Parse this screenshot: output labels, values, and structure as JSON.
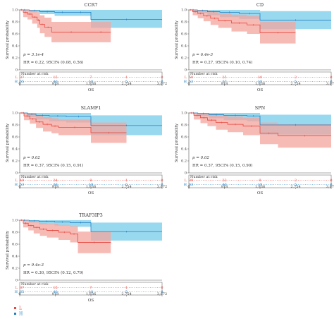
{
  "colors": {
    "low": "#e8473f",
    "high": "#1f7fc0",
    "low_band": "#f4a49e",
    "high_band": "#7fd0ec",
    "frame": "#555555"
  },
  "legend": {
    "low_label": "L",
    "high_label": "H"
  },
  "chart_data": [
    {
      "type": "line",
      "title": "CCR7",
      "xlabel": "OS",
      "ylabel": "Survival probability",
      "xlim": [
        0,
        3672
      ],
      "ylim": [
        0,
        1.0
      ],
      "x_ticks": [
        "0",
        "918",
        "1,836",
        "2,754",
        "3,672"
      ],
      "y_ticks": [
        "0",
        "0.2",
        "0.4",
        "0.6",
        "0.8",
        "1.0"
      ],
      "grid": false,
      "pvalue_text": "p = 3.1e-4",
      "hr_text": "HR = 0.22, 95CI% (0.08, 0.56)",
      "risk_table_label": "Number at risk",
      "series": [
        {
          "name": "L",
          "risk_counts": [
            "37",
            "15",
            "7",
            "1",
            "0"
          ],
          "x": [
            0,
            90,
            200,
            320,
            450,
            520,
            640,
            820,
            1836,
            2350
          ],
          "y": [
            1.0,
            0.96,
            0.93,
            0.88,
            0.83,
            0.76,
            0.71,
            0.63,
            0.63,
            0.63
          ],
          "ci_lower": [
            1.0,
            0.88,
            0.84,
            0.77,
            0.7,
            0.61,
            0.55,
            0.46,
            0.46,
            0.46
          ],
          "ci_upper": [
            1.0,
            1.0,
            1.0,
            0.99,
            0.96,
            0.91,
            0.87,
            0.8,
            0.8,
            0.8
          ]
        },
        {
          "name": "H",
          "risk_counts": [
            "65",
            "40",
            "18",
            "5",
            "0"
          ],
          "x": [
            0,
            250,
            520,
            900,
            1300,
            1836,
            3672
          ],
          "y": [
            1.0,
            0.99,
            0.97,
            0.96,
            0.96,
            0.84,
            0.84
          ],
          "ci_lower": [
            1.0,
            0.96,
            0.93,
            0.9,
            0.9,
            0.7,
            0.7
          ],
          "ci_upper": [
            1.0,
            1.0,
            1.0,
            1.0,
            1.0,
            1.0,
            1.0
          ]
        }
      ]
    },
    {
      "type": "line",
      "title": "CD",
      "xlabel": "OS",
      "ylabel": "Survival probability",
      "xlim": [
        0,
        3672
      ],
      "ylim": [
        0,
        1.0
      ],
      "x_ticks": [
        "0",
        "918",
        "1,836",
        "2,754",
        "3,672"
      ],
      "y_ticks": [
        "0",
        "0.2",
        "0.4",
        "0.6",
        "0.8",
        "1.0"
      ],
      "grid": false,
      "pvalue_text": "p = 6.4e-3",
      "hr_text": "HR = 0.27, 95CI% (0.10, 0.74)",
      "risk_table_label": "Number at risk",
      "series": [
        {
          "name": "L",
          "risk_counts": [
            "50",
            "25",
            "10",
            "2",
            "0"
          ],
          "x": [
            0,
            100,
            230,
            380,
            560,
            760,
            1100,
            1500,
            1836,
            2754
          ],
          "y": [
            1.0,
            0.97,
            0.94,
            0.9,
            0.86,
            0.82,
            0.78,
            0.75,
            0.62,
            0.62
          ],
          "ci_lower": [
            1.0,
            0.91,
            0.86,
            0.81,
            0.75,
            0.7,
            0.64,
            0.6,
            0.44,
            0.44
          ],
          "ci_upper": [
            1.0,
            1.0,
            1.0,
            0.99,
            0.97,
            0.94,
            0.92,
            0.9,
            0.8,
            0.8
          ]
        },
        {
          "name": "H",
          "risk_counts": [
            "52",
            "37",
            "18",
            "5",
            "0"
          ],
          "x": [
            0,
            220,
            480,
            800,
            1300,
            1836,
            3672
          ],
          "y": [
            1.0,
            0.99,
            0.97,
            0.96,
            0.94,
            0.83,
            0.83
          ],
          "ci_lower": [
            1.0,
            0.95,
            0.91,
            0.88,
            0.85,
            0.68,
            0.68
          ],
          "ci_upper": [
            1.0,
            1.0,
            1.0,
            1.0,
            1.0,
            0.98,
            0.98
          ]
        }
      ]
    },
    {
      "type": "line",
      "title": "SLAMF1",
      "xlabel": "OS",
      "ylabel": "Survival probability",
      "xlim": [
        0,
        3672
      ],
      "ylim": [
        0,
        1.0
      ],
      "x_ticks": [
        "0",
        "918",
        "1,836",
        "2,754",
        "3,672"
      ],
      "y_ticks": [
        "0",
        "0.2",
        "0.4",
        "0.6",
        "0.8",
        "1.0"
      ],
      "grid": false,
      "pvalue_text": "p = 0.02",
      "hr_text": "HR = 0.37, 95CI% (0.15, 0.91)",
      "risk_table_label": "Number at risk",
      "series": [
        {
          "name": "L",
          "risk_counts": [
            "49",
            "24",
            "9",
            "1",
            "0"
          ],
          "x": [
            0,
            110,
            260,
            420,
            600,
            820,
            1000,
            1836,
            2754
          ],
          "y": [
            1.0,
            0.95,
            0.9,
            0.85,
            0.81,
            0.78,
            0.76,
            0.67,
            0.67
          ],
          "ci_lower": [
            1.0,
            0.88,
            0.82,
            0.75,
            0.69,
            0.66,
            0.63,
            0.5,
            0.5
          ],
          "ci_upper": [
            1.0,
            1.0,
            0.99,
            0.96,
            0.93,
            0.91,
            0.89,
            0.84,
            0.84
          ]
        },
        {
          "name": "H",
          "risk_counts": [
            "53",
            "38",
            "19",
            "6",
            "0"
          ],
          "x": [
            0,
            200,
            420,
            760,
            1200,
            1836,
            3672
          ],
          "y": [
            1.0,
            0.98,
            0.96,
            0.95,
            0.94,
            0.79,
            0.79
          ],
          "ci_lower": [
            1.0,
            0.93,
            0.89,
            0.86,
            0.84,
            0.63,
            0.63
          ],
          "ci_upper": [
            1.0,
            1.0,
            1.0,
            1.0,
            1.0,
            0.96,
            0.96
          ]
        }
      ]
    },
    {
      "type": "line",
      "title": "SPN",
      "xlabel": "OS",
      "ylabel": "Survival probability",
      "xlim": [
        0,
        3672
      ],
      "ylim": [
        0,
        1.0
      ],
      "x_ticks": [
        "0",
        "918",
        "1,836",
        "2,754",
        "3,672"
      ],
      "y_ticks": [
        "0",
        "0.2",
        "0.4",
        "0.6",
        "0.8",
        "1.0"
      ],
      "grid": false,
      "pvalue_text": "p = 0.02",
      "hr_text": "HR = 0.37, 95CI% (0.15, 0.90)",
      "risk_table_label": "Number at risk",
      "series": [
        {
          "name": "L",
          "risk_counts": [
            "39",
            "22",
            "9",
            "2",
            "0"
          ],
          "x": [
            0,
            130,
            300,
            480,
            700,
            1000,
            1400,
            1836,
            2300,
            3672
          ],
          "y": [
            1.0,
            0.96,
            0.92,
            0.88,
            0.84,
            0.81,
            0.78,
            0.66,
            0.62,
            0.62
          ],
          "ci_lower": [
            1.0,
            0.89,
            0.83,
            0.78,
            0.72,
            0.68,
            0.63,
            0.48,
            0.42,
            0.42
          ],
          "ci_upper": [
            1.0,
            1.0,
            1.0,
            0.98,
            0.96,
            0.94,
            0.92,
            0.84,
            0.81,
            0.81
          ]
        },
        {
          "name": "H",
          "risk_counts": [
            "63",
            "40",
            "19",
            "5",
            "0"
          ],
          "x": [
            0,
            230,
            520,
            900,
            1500,
            1836,
            3672
          ],
          "y": [
            1.0,
            0.99,
            0.97,
            0.96,
            0.95,
            0.8,
            0.8
          ],
          "ci_lower": [
            1.0,
            0.95,
            0.91,
            0.88,
            0.86,
            0.64,
            0.64
          ],
          "ci_upper": [
            1.0,
            1.0,
            1.0,
            1.0,
            1.0,
            0.97,
            0.97
          ]
        }
      ]
    },
    {
      "type": "line",
      "title": "TRAF3IP3",
      "xlabel": "OS",
      "ylabel": "Survival probability",
      "xlim": [
        0,
        3672
      ],
      "ylim": [
        0,
        1.0
      ],
      "x_ticks": [
        "0",
        "918",
        "1,836",
        "2,754",
        "3,672"
      ],
      "y_ticks": [
        "0",
        "0.2",
        "0.4",
        "0.6",
        "0.8",
        "1.0"
      ],
      "grid": false,
      "pvalue_text": "p = 9.4e-3",
      "hr_text": "HR = 0.30, 95CI% (0.12, 0.79)",
      "risk_table_label": "Number at risk",
      "series": [
        {
          "name": "L",
          "risk_counts": [
            "37",
            "15",
            "7",
            "1",
            "0"
          ],
          "x": [
            0,
            90,
            220,
            360,
            520,
            700,
            1000,
            1300,
            1500,
            2350
          ],
          "y": [
            1.0,
            0.95,
            0.91,
            0.88,
            0.85,
            0.83,
            0.8,
            0.77,
            0.63,
            0.63
          ],
          "ci_lower": [
            1.0,
            0.88,
            0.83,
            0.78,
            0.74,
            0.71,
            0.67,
            0.63,
            0.45,
            0.45
          ],
          "ci_upper": [
            1.0,
            1.0,
            0.99,
            0.97,
            0.95,
            0.94,
            0.92,
            0.9,
            0.81,
            0.81
          ]
        },
        {
          "name": "H",
          "risk_counts": [
            "65",
            "40",
            "18",
            "5",
            "0"
          ],
          "x": [
            0,
            240,
            500,
            900,
            1300,
            1836,
            3672
          ],
          "y": [
            1.0,
            0.99,
            0.98,
            0.97,
            0.96,
            0.81,
            0.81
          ],
          "ci_lower": [
            1.0,
            0.96,
            0.93,
            0.91,
            0.89,
            0.66,
            0.66
          ],
          "ci_upper": [
            1.0,
            1.0,
            1.0,
            1.0,
            1.0,
            0.96,
            0.96
          ]
        }
      ]
    }
  ]
}
